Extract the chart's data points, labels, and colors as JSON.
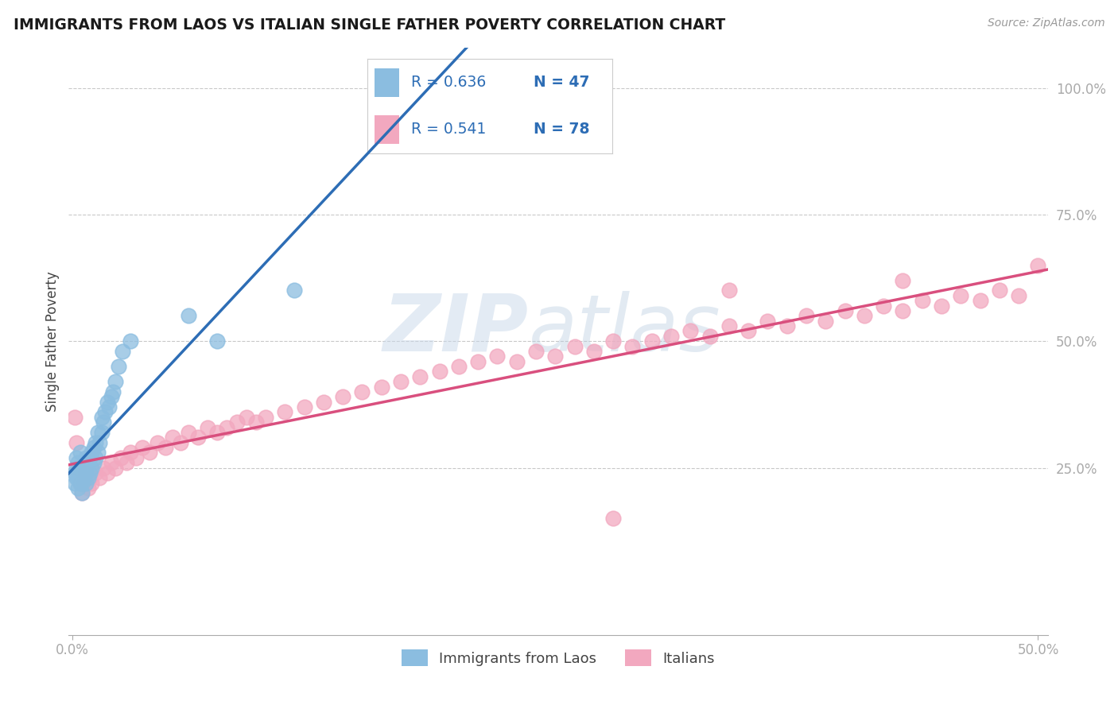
{
  "title": "IMMIGRANTS FROM LAOS VS ITALIAN SINGLE FATHER POVERTY CORRELATION CHART",
  "source": "Source: ZipAtlas.com",
  "ylabel": "Single Father Poverty",
  "legend_blue_r": "R = 0.636",
  "legend_blue_n": "N = 47",
  "legend_pink_r": "R = 0.541",
  "legend_pink_n": "N = 78",
  "legend_label_blue": "Immigrants from Laos",
  "legend_label_pink": "Italians",
  "ytick_labels": [
    "25.0%",
    "50.0%",
    "75.0%",
    "100.0%"
  ],
  "ytick_values": [
    0.25,
    0.5,
    0.75,
    1.0
  ],
  "xlim": [
    -0.002,
    0.505
  ],
  "ylim": [
    -0.08,
    1.08
  ],
  "blue_color": "#8bbde0",
  "pink_color": "#f2a8bf",
  "blue_line_color": "#2d6db5",
  "pink_line_color": "#d94f7e",
  "watermark_zip": "ZIP",
  "watermark_atlas": "atlas",
  "bg_color": "#ffffff",
  "blue_scatter_x": [
    0.001,
    0.001,
    0.002,
    0.002,
    0.002,
    0.003,
    0.003,
    0.003,
    0.004,
    0.004,
    0.004,
    0.005,
    0.005,
    0.005,
    0.006,
    0.006,
    0.007,
    0.007,
    0.007,
    0.008,
    0.008,
    0.009,
    0.009,
    0.01,
    0.01,
    0.011,
    0.011,
    0.012,
    0.012,
    0.013,
    0.013,
    0.014,
    0.015,
    0.015,
    0.016,
    0.017,
    0.018,
    0.019,
    0.02,
    0.021,
    0.022,
    0.024,
    0.026,
    0.03,
    0.06,
    0.075,
    0.115
  ],
  "blue_scatter_y": [
    0.22,
    0.24,
    0.23,
    0.25,
    0.27,
    0.21,
    0.23,
    0.26,
    0.22,
    0.24,
    0.28,
    0.2,
    0.22,
    0.25,
    0.23,
    0.26,
    0.22,
    0.24,
    0.27,
    0.23,
    0.26,
    0.24,
    0.27,
    0.25,
    0.28,
    0.26,
    0.29,
    0.27,
    0.3,
    0.28,
    0.32,
    0.3,
    0.35,
    0.32,
    0.34,
    0.36,
    0.38,
    0.37,
    0.39,
    0.4,
    0.42,
    0.45,
    0.48,
    0.5,
    0.55,
    0.5,
    0.6
  ],
  "pink_scatter_x": [
    0.001,
    0.002,
    0.003,
    0.004,
    0.005,
    0.006,
    0.007,
    0.008,
    0.009,
    0.01,
    0.012,
    0.014,
    0.016,
    0.018,
    0.02,
    0.022,
    0.025,
    0.028,
    0.03,
    0.033,
    0.036,
    0.04,
    0.044,
    0.048,
    0.052,
    0.056,
    0.06,
    0.065,
    0.07,
    0.075,
    0.08,
    0.085,
    0.09,
    0.095,
    0.1,
    0.11,
    0.12,
    0.13,
    0.14,
    0.15,
    0.16,
    0.17,
    0.18,
    0.19,
    0.2,
    0.21,
    0.22,
    0.23,
    0.24,
    0.25,
    0.26,
    0.27,
    0.28,
    0.29,
    0.3,
    0.31,
    0.32,
    0.33,
    0.34,
    0.35,
    0.36,
    0.37,
    0.38,
    0.39,
    0.4,
    0.41,
    0.42,
    0.43,
    0.44,
    0.45,
    0.46,
    0.47,
    0.48,
    0.49,
    0.5,
    0.34,
    0.28,
    0.43
  ],
  "pink_scatter_y": [
    0.35,
    0.3,
    0.25,
    0.22,
    0.2,
    0.22,
    0.24,
    0.21,
    0.23,
    0.22,
    0.24,
    0.23,
    0.25,
    0.24,
    0.26,
    0.25,
    0.27,
    0.26,
    0.28,
    0.27,
    0.29,
    0.28,
    0.3,
    0.29,
    0.31,
    0.3,
    0.32,
    0.31,
    0.33,
    0.32,
    0.33,
    0.34,
    0.35,
    0.34,
    0.35,
    0.36,
    0.37,
    0.38,
    0.39,
    0.4,
    0.41,
    0.42,
    0.43,
    0.44,
    0.45,
    0.46,
    0.47,
    0.46,
    0.48,
    0.47,
    0.49,
    0.48,
    0.5,
    0.49,
    0.5,
    0.51,
    0.52,
    0.51,
    0.53,
    0.52,
    0.54,
    0.53,
    0.55,
    0.54,
    0.56,
    0.55,
    0.57,
    0.56,
    0.58,
    0.57,
    0.59,
    0.58,
    0.6,
    0.59,
    0.65,
    0.6,
    0.15,
    0.62
  ]
}
